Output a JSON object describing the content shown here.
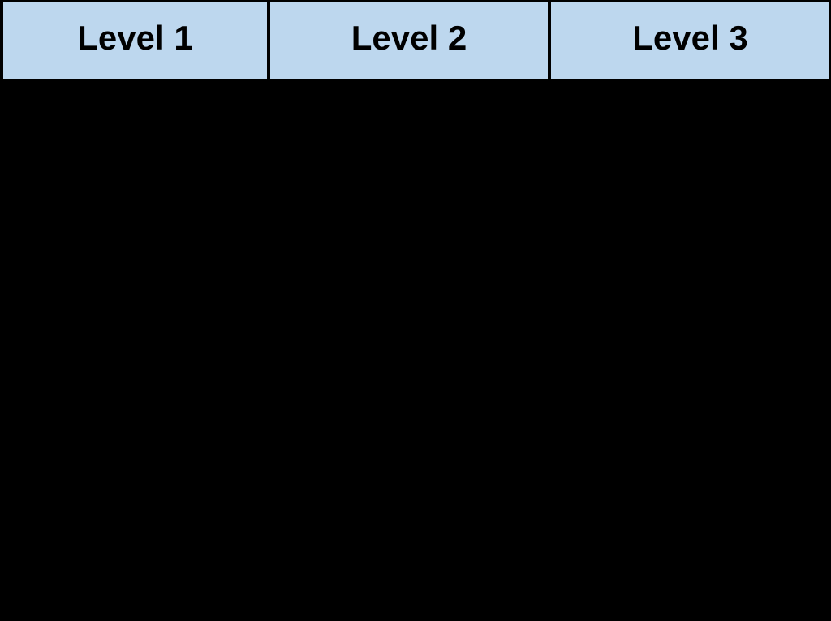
{
  "table": {
    "headers": [
      {
        "label": "Level 1"
      },
      {
        "label": "Level 2"
      },
      {
        "label": "Level 3"
      }
    ],
    "header_bg": "#BDD7EE",
    "border_color": "#000000",
    "text_color": "#000000",
    "body_bg": "#000000"
  }
}
